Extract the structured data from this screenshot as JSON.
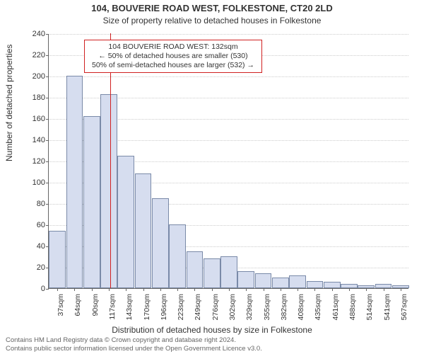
{
  "title": "104, BOUVERIE ROAD WEST, FOLKESTONE, CT20 2LD",
  "subtitle": "Size of property relative to detached houses in Folkestone",
  "ylabel": "Number of detached properties",
  "xlabel": "Distribution of detached houses by size in Folkestone",
  "annotation": {
    "line1": "104 BOUVERIE ROAD WEST: 132sqm",
    "line2": "← 50% of detached houses are smaller (530)",
    "line3": "50% of semi-detached houses are larger (532) →"
  },
  "footer": {
    "line1": "Contains HM Land Registry data © Crown copyright and database right 2024.",
    "line2": "Contains public sector information licensed under the Open Government Licence v3.0."
  },
  "chart": {
    "type": "histogram",
    "ylim": [
      0,
      240
    ],
    "ytick_step": 20,
    "yticks": [
      0,
      20,
      40,
      60,
      80,
      100,
      120,
      140,
      160,
      180,
      200,
      220,
      240
    ],
    "bar_fill": "#d6ddef",
    "bar_stroke": "#7a8aa8",
    "grid_color": "#cccccc",
    "background_color": "#ffffff",
    "marker_color": "#d02020",
    "marker_x_value": 132,
    "title_fontsize": 13,
    "subtitle_fontsize": 12,
    "label_fontsize": 12,
    "tick_fontsize": 11,
    "xtick_fontsize": 10.5,
    "annotation_fontsize": 10.5,
    "footer_fontsize": 9.5,
    "categories": [
      "37sqm",
      "64sqm",
      "90sqm",
      "117sqm",
      "143sqm",
      "170sqm",
      "196sqm",
      "223sqm",
      "249sqm",
      "276sqm",
      "302sqm",
      "329sqm",
      "355sqm",
      "382sqm",
      "408sqm",
      "435sqm",
      "461sqm",
      "488sqm",
      "514sqm",
      "541sqm",
      "567sqm"
    ],
    "values": [
      54,
      200,
      162,
      183,
      125,
      108,
      85,
      60,
      35,
      28,
      30,
      16,
      14,
      10,
      12,
      7,
      6,
      4,
      3,
      4,
      3
    ]
  }
}
